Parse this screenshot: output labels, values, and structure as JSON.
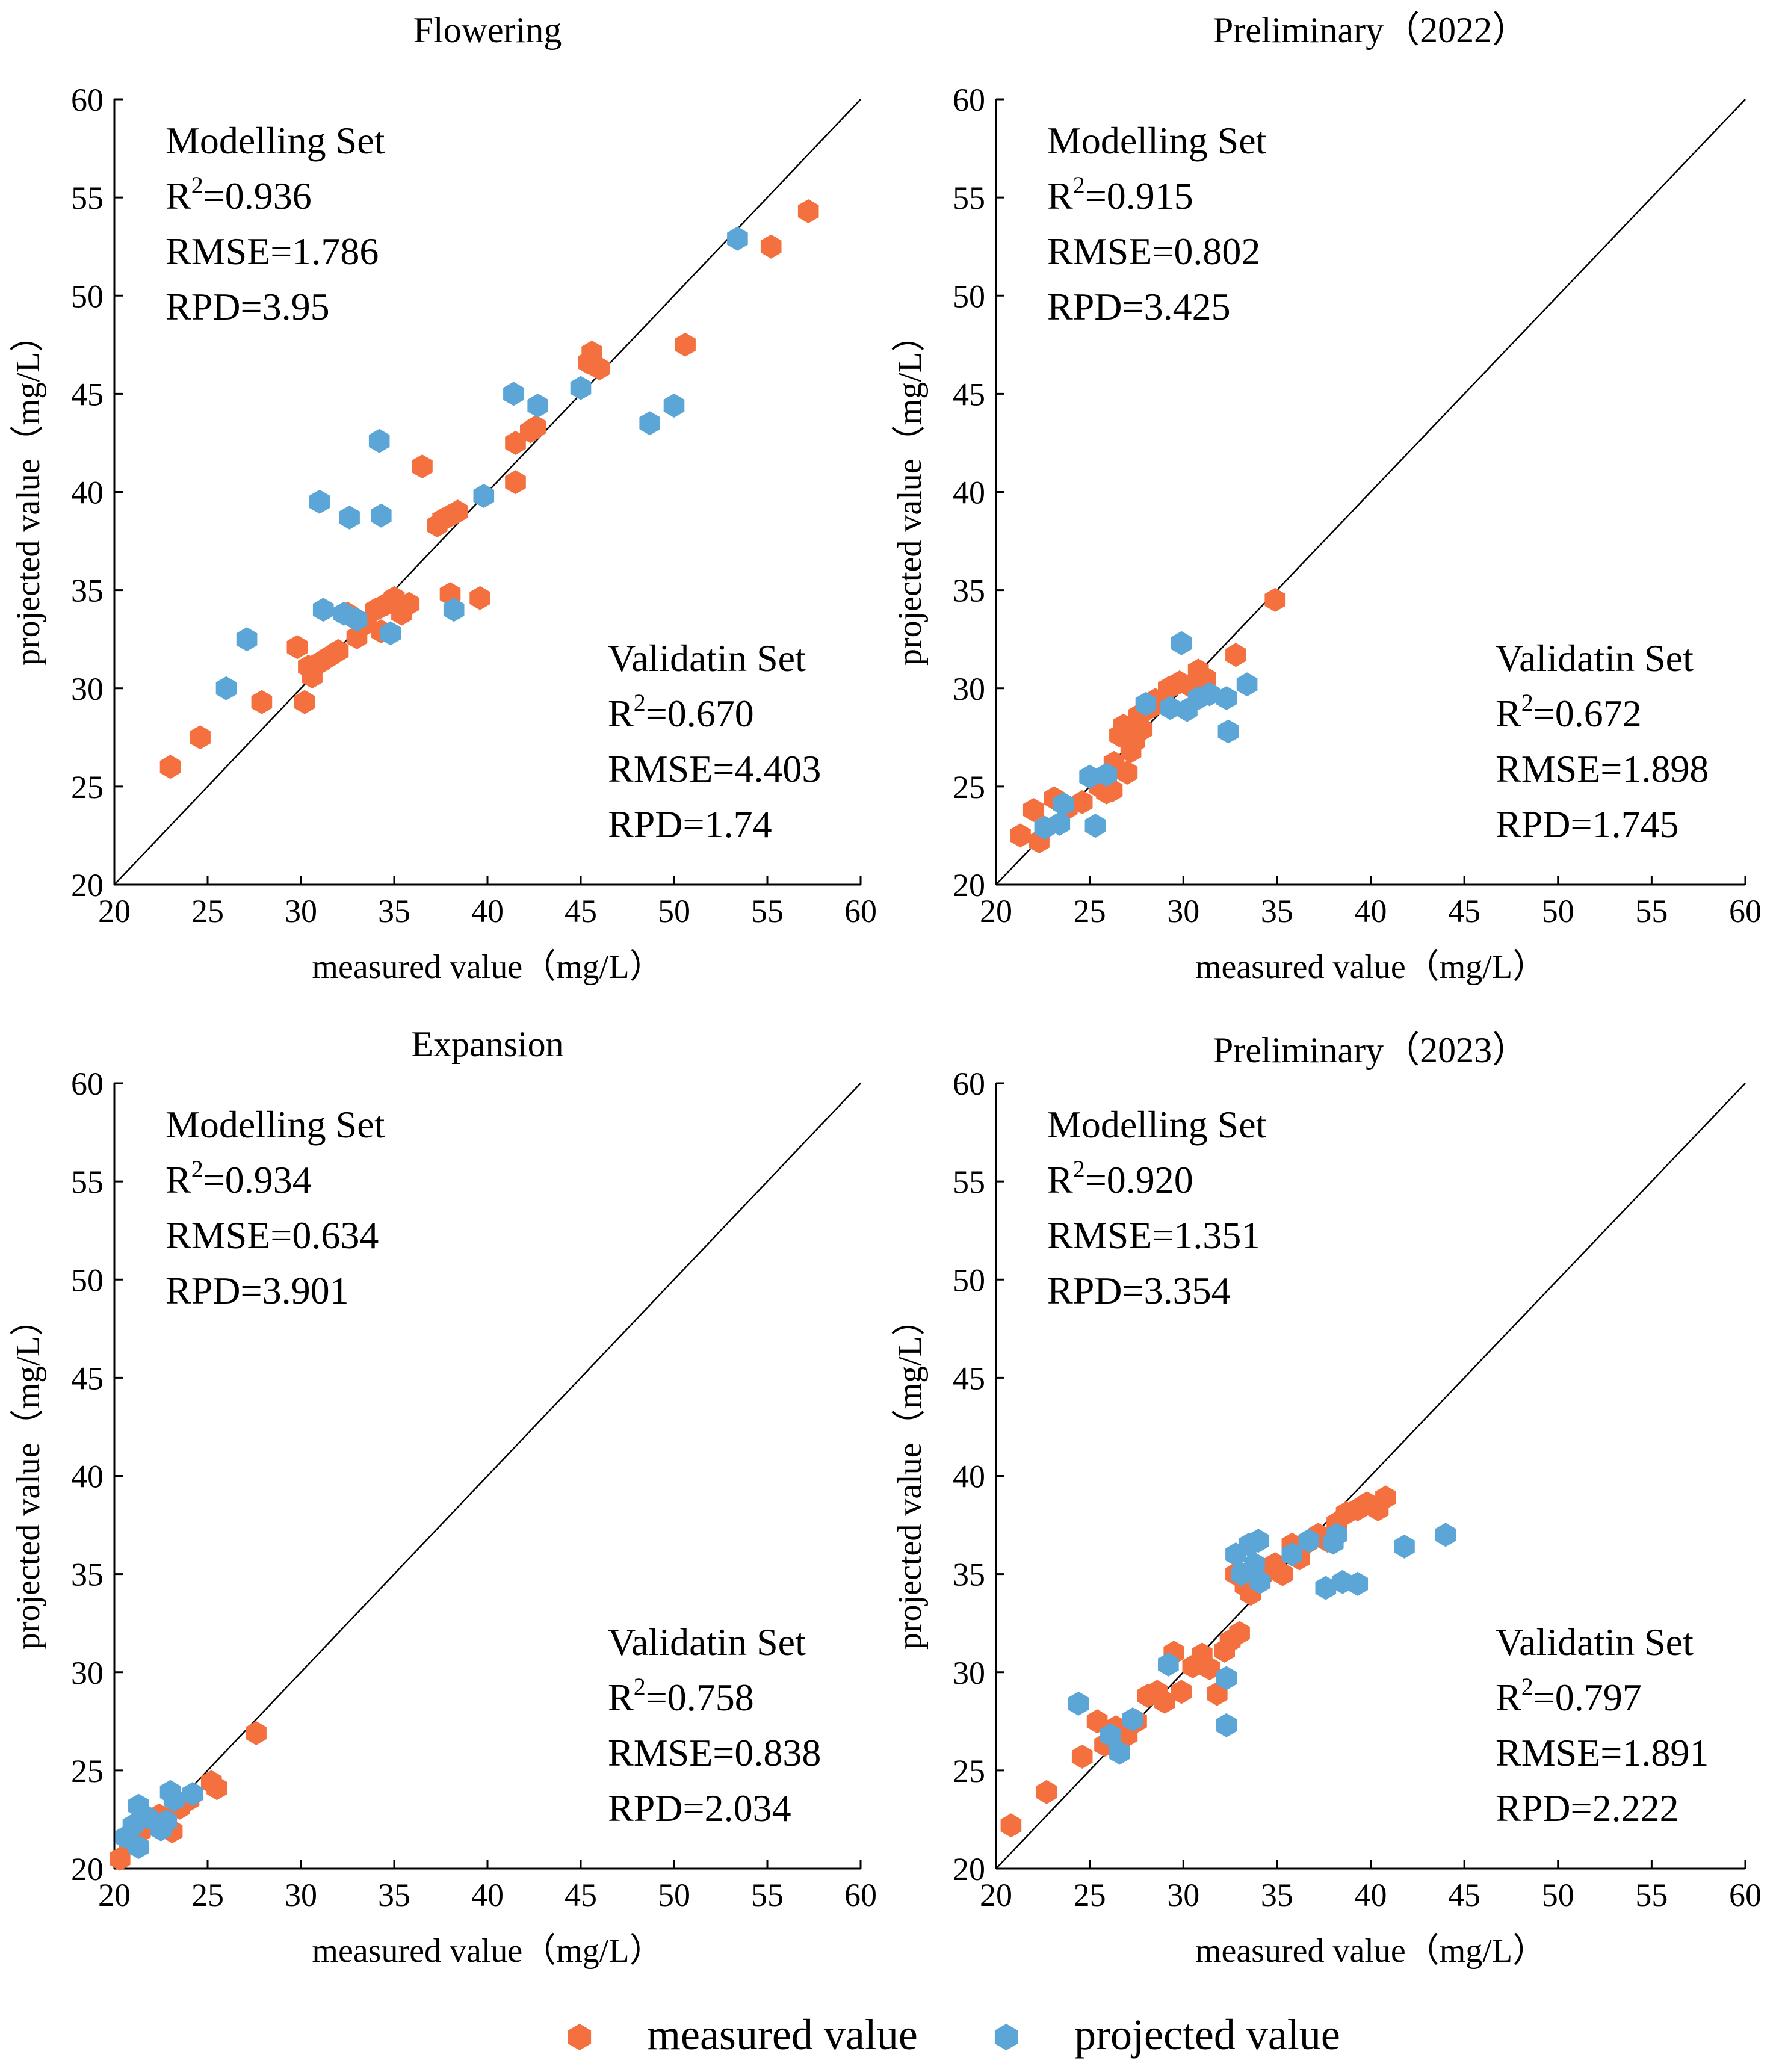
{
  "figure": {
    "x_label": "measured value（mg/L）",
    "y_label": "projected value（mg/L）",
    "colors": {
      "measured": "#F4703E",
      "projected": "#5BA6D6"
    },
    "legend": [
      {
        "key": "measured",
        "label": "measured value",
        "color": "#F4703E",
        "icon": "hexagon-icon"
      },
      {
        "key": "projected",
        "label": "projected value",
        "color": "#5BA6D6",
        "icon": "hexagon-icon"
      }
    ]
  },
  "chart_data": [
    {
      "type": "scatter",
      "title": "Flowering",
      "xlabel": "measured value（mg/L）",
      "ylabel": "projected value（mg/L）",
      "xlim": [
        20,
        60
      ],
      "ylim": [
        20,
        60
      ],
      "ticks": [
        20,
        25,
        30,
        35,
        40,
        45,
        50,
        55,
        60
      ],
      "reference_line": "y = x",
      "modelling": {
        "title": "Modelling Set",
        "r2_prefix": "R",
        "r2_sup": "2",
        "r2_value": "=0.936",
        "rmse": "RMSE=1.786",
        "rpd": "RPD=3.95"
      },
      "validation": {
        "title": "Validatin Set",
        "r2_prefix": "R",
        "r2_sup": "2",
        "r2_value": "=0.670",
        "rmse": "RMSE=4.403",
        "rpd": "RPD=1.74"
      },
      "series": [
        {
          "name": "measured value",
          "points": [
            [
              23,
              26
            ],
            [
              24.6,
              27.5
            ],
            [
              27.9,
              29.3
            ],
            [
              29.8,
              32.1
            ],
            [
              30.2,
              29.3
            ],
            [
              30.4,
              31.1
            ],
            [
              30.6,
              30.6
            ],
            [
              31.0,
              31.3
            ],
            [
              31.5,
              31.6
            ],
            [
              32.0,
              31.9
            ],
            [
              32.5,
              33.8
            ],
            [
              33.0,
              32.6
            ],
            [
              33.5,
              33.3
            ],
            [
              34.0,
              34.0
            ],
            [
              34.3,
              32.9
            ],
            [
              34.6,
              34.3
            ],
            [
              35.0,
              34.6
            ],
            [
              35.4,
              33.8
            ],
            [
              35.8,
              34.3
            ],
            [
              36.5,
              41.3
            ],
            [
              37.3,
              38.3
            ],
            [
              37.6,
              38.6
            ],
            [
              38.0,
              38.8
            ],
            [
              38.4,
              39.0
            ],
            [
              38.0,
              34.8
            ],
            [
              39.6,
              34.6
            ],
            [
              41.5,
              40.5
            ],
            [
              41.5,
              42.5
            ],
            [
              42.3,
              43.1
            ],
            [
              42.6,
              43.3
            ],
            [
              45.4,
              46.6
            ],
            [
              45.6,
              47.1
            ],
            [
              46.0,
              46.3
            ],
            [
              50.6,
              47.5
            ],
            [
              55.2,
              52.5
            ],
            [
              57.2,
              54.3
            ]
          ]
        },
        {
          "name": "projected value",
          "points": [
            [
              26.0,
              30.0
            ],
            [
              27.1,
              32.5
            ],
            [
              31.0,
              39.5
            ],
            [
              31.2,
              34.0
            ],
            [
              32.3,
              33.8
            ],
            [
              32.6,
              38.7
            ],
            [
              33.0,
              33.5
            ],
            [
              34.2,
              42.6
            ],
            [
              34.3,
              38.8
            ],
            [
              34.8,
              32.8
            ],
            [
              38.2,
              34.0
            ],
            [
              39.8,
              39.8
            ],
            [
              41.4,
              45.0
            ],
            [
              42.7,
              44.4
            ],
            [
              45.0,
              45.3
            ],
            [
              48.7,
              43.5
            ],
            [
              50.0,
              44.4
            ],
            [
              53.4,
              52.9
            ]
          ]
        }
      ]
    },
    {
      "type": "scatter",
      "title": "Preliminary（2022）",
      "xlabel": "measured value（mg/L）",
      "ylabel": "projected value（mg/L）",
      "xlim": [
        20,
        60
      ],
      "ylim": [
        20,
        60
      ],
      "ticks": [
        20,
        25,
        30,
        35,
        40,
        45,
        50,
        55,
        60
      ],
      "reference_line": "y = x",
      "modelling": {
        "title": "Modelling Set",
        "r2_prefix": "R",
        "r2_sup": "2",
        "r2_value": "=0.915",
        "rmse": "RMSE=0.802",
        "rpd": "RPD=3.425"
      },
      "validation": {
        "title": "Validatin Set",
        "r2_prefix": "R",
        "r2_sup": "2",
        "r2_value": "=0.672",
        "rmse": "RMSE=1.898",
        "rpd": "RPD=1.745"
      },
      "series": [
        {
          "name": "measured value",
          "points": [
            [
              21.3,
              22.5
            ],
            [
              22.0,
              23.8
            ],
            [
              22.3,
              22.2
            ],
            [
              23.1,
              24.4
            ],
            [
              23.8,
              23.9
            ],
            [
              24.6,
              24.2
            ],
            [
              25.5,
              25.0
            ],
            [
              25.9,
              24.7
            ],
            [
              26.2,
              24.8
            ],
            [
              26.3,
              26.2
            ],
            [
              26.6,
              27.6
            ],
            [
              26.8,
              28.1
            ],
            [
              27.0,
              25.7
            ],
            [
              27.2,
              26.8
            ],
            [
              27.4,
              27.3
            ],
            [
              27.6,
              28.6
            ],
            [
              27.8,
              27.9
            ],
            [
              28.2,
              29.0
            ],
            [
              28.5,
              29.4
            ],
            [
              29.2,
              30.0
            ],
            [
              29.8,
              30.3
            ],
            [
              30.4,
              30.1
            ],
            [
              30.8,
              30.9
            ],
            [
              31.2,
              30.5
            ],
            [
              32.8,
              31.7
            ],
            [
              34.9,
              34.5
            ]
          ]
        },
        {
          "name": "projected value",
          "points": [
            [
              22.6,
              22.9
            ],
            [
              23.4,
              23.1
            ],
            [
              23.6,
              24.1
            ],
            [
              25.0,
              25.5
            ],
            [
              25.3,
              23.0
            ],
            [
              25.9,
              25.6
            ],
            [
              28.0,
              29.2
            ],
            [
              29.3,
              29.0
            ],
            [
              29.9,
              32.3
            ],
            [
              30.2,
              28.9
            ],
            [
              30.8,
              29.5
            ],
            [
              31.4,
              29.7
            ],
            [
              32.3,
              29.5
            ],
            [
              32.4,
              27.8
            ],
            [
              33.4,
              30.2
            ]
          ]
        }
      ]
    },
    {
      "type": "scatter",
      "title": "Expansion",
      "xlabel": "measured value（mg/L）",
      "ylabel": "projected value（mg/L）",
      "xlim": [
        20,
        60
      ],
      "ylim": [
        20,
        60
      ],
      "ticks": [
        20,
        25,
        30,
        35,
        40,
        45,
        50,
        55,
        60
      ],
      "reference_line": "y = x",
      "modelling": {
        "title": "Modelling Set",
        "r2_prefix": "R",
        "r2_sup": "2",
        "r2_value": "=0.934",
        "rmse": "RMSE=0.634",
        "rpd": "RPD=3.901"
      },
      "validation": {
        "title": "Validatin Set",
        "r2_prefix": "R",
        "r2_sup": "2",
        "r2_value": "=0.758",
        "rmse": "RMSE=0.838",
        "rpd": "RPD=2.034"
      },
      "series": [
        {
          "name": "measured value",
          "points": [
            [
              20.3,
              20.5
            ],
            [
              20.8,
              21.4
            ],
            [
              21.4,
              21.9
            ],
            [
              21.9,
              22.3
            ],
            [
              22.4,
              22.7
            ],
            [
              22.8,
              22.5
            ],
            [
              23.1,
              21.9
            ],
            [
              23.5,
              23.1
            ],
            [
              24.0,
              23.5
            ],
            [
              25.2,
              24.4
            ],
            [
              25.5,
              24.1
            ],
            [
              27.6,
              26.9
            ]
          ]
        },
        {
          "name": "projected value",
          "points": [
            [
              20.6,
              21.6
            ],
            [
              21.0,
              22.2
            ],
            [
              21.3,
              23.2
            ],
            [
              21.3,
              21.1
            ],
            [
              21.8,
              22.6
            ],
            [
              22.5,
              22.0
            ],
            [
              22.8,
              22.4
            ],
            [
              23.0,
              23.9
            ],
            [
              23.2,
              23.5
            ],
            [
              24.2,
              23.8
            ]
          ]
        }
      ]
    },
    {
      "type": "scatter",
      "title": "Preliminary（2023）",
      "xlabel": "measured value（mg/L）",
      "ylabel": "projected value（mg/L）",
      "xlim": [
        20,
        60
      ],
      "ylim": [
        20,
        60
      ],
      "ticks": [
        20,
        25,
        30,
        35,
        40,
        45,
        50,
        55,
        60
      ],
      "reference_line": "y = x",
      "modelling": {
        "title": "Modelling Set",
        "r2_prefix": "R",
        "r2_sup": "2",
        "r2_value": "=0.920",
        "rmse": "RMSE=1.351",
        "rpd": "RPD=3.354"
      },
      "validation": {
        "title": "Validatin Set",
        "r2_prefix": "R",
        "r2_sup": "2",
        "r2_value": "=0.797",
        "rmse": "RMSE=1.891",
        "rpd": "RPD=2.222"
      },
      "series": [
        {
          "name": "measured value",
          "points": [
            [
              20.8,
              22.2
            ],
            [
              22.7,
              23.9
            ],
            [
              24.6,
              25.7
            ],
            [
              25.4,
              27.5
            ],
            [
              25.8,
              26.3
            ],
            [
              26.4,
              27.2
            ],
            [
              27.0,
              26.8
            ],
            [
              27.5,
              27.5
            ],
            [
              28.1,
              28.8
            ],
            [
              28.6,
              29.0
            ],
            [
              29.0,
              28.5
            ],
            [
              29.5,
              31.0
            ],
            [
              29.9,
              29.0
            ],
            [
              30.5,
              30.3
            ],
            [
              31.0,
              30.9
            ],
            [
              31.4,
              30.2
            ],
            [
              31.8,
              28.9
            ],
            [
              32.2,
              31.1
            ],
            [
              32.5,
              31.6
            ],
            [
              32.8,
              35.0
            ],
            [
              33.0,
              32.0
            ],
            [
              33.3,
              34.4
            ],
            [
              33.6,
              34.0
            ],
            [
              34.0,
              35.3
            ],
            [
              34.4,
              35.1
            ],
            [
              34.9,
              35.5
            ],
            [
              35.3,
              35.0
            ],
            [
              35.8,
              36.5
            ],
            [
              36.2,
              35.8
            ],
            [
              36.6,
              36.6
            ],
            [
              37.2,
              37.0
            ],
            [
              37.7,
              36.7
            ],
            [
              38.2,
              37.6
            ],
            [
              38.7,
              38.1
            ],
            [
              39.3,
              38.3
            ],
            [
              39.8,
              38.6
            ],
            [
              40.4,
              38.3
            ],
            [
              40.8,
              38.9
            ]
          ]
        },
        {
          "name": "projected value",
          "points": [
            [
              24.4,
              28.4
            ],
            [
              26.1,
              26.8
            ],
            [
              26.6,
              25.9
            ],
            [
              27.3,
              27.6
            ],
            [
              29.2,
              30.4
            ],
            [
              32.3,
              29.7
            ],
            [
              32.3,
              27.3
            ],
            [
              32.8,
              36.0
            ],
            [
              33.1,
              35.0
            ],
            [
              33.5,
              36.5
            ],
            [
              33.8,
              35.5
            ],
            [
              34.0,
              36.7
            ],
            [
              34.1,
              34.6
            ],
            [
              35.8,
              36.0
            ],
            [
              36.7,
              36.7
            ],
            [
              37.6,
              34.3
            ],
            [
              38.0,
              36.6
            ],
            [
              38.2,
              37.0
            ],
            [
              38.5,
              34.6
            ],
            [
              39.3,
              34.5
            ],
            [
              41.8,
              36.4
            ],
            [
              44.0,
              37.0
            ]
          ]
        }
      ]
    }
  ]
}
